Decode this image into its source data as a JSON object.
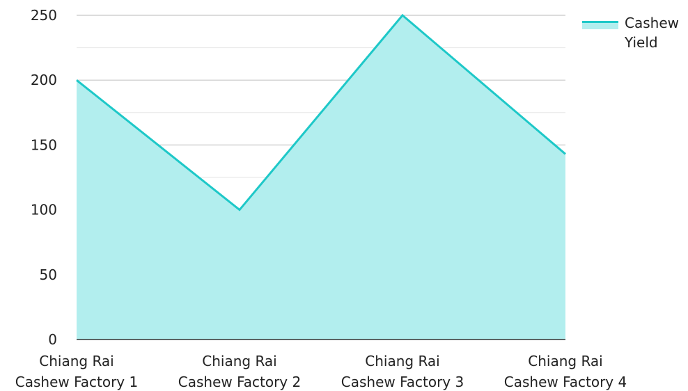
{
  "chart_data": {
    "type": "area",
    "title": "",
    "xlabel": "",
    "ylabel": "",
    "categories": [
      [
        "Chiang Rai",
        "Cashew Factory 1"
      ],
      [
        "Chiang Rai",
        "Cashew Factory 2"
      ],
      [
        "Chiang Rai",
        "Cashew Factory 3"
      ],
      [
        "Chiang Rai",
        "Cashew Factory 4"
      ]
    ],
    "series": [
      {
        "name": "Cashew Yield",
        "legend_lines": [
          "Cashew",
          "Yield"
        ],
        "values": [
          200,
          100,
          250,
          143
        ],
        "line_color": "#1ec8c8",
        "fill_color": "#b2eeee"
      }
    ],
    "ylim": [
      0,
      250
    ],
    "yticks": [
      0,
      50,
      100,
      150,
      200,
      250
    ],
    "grid": true,
    "legend_position": "top-right"
  }
}
